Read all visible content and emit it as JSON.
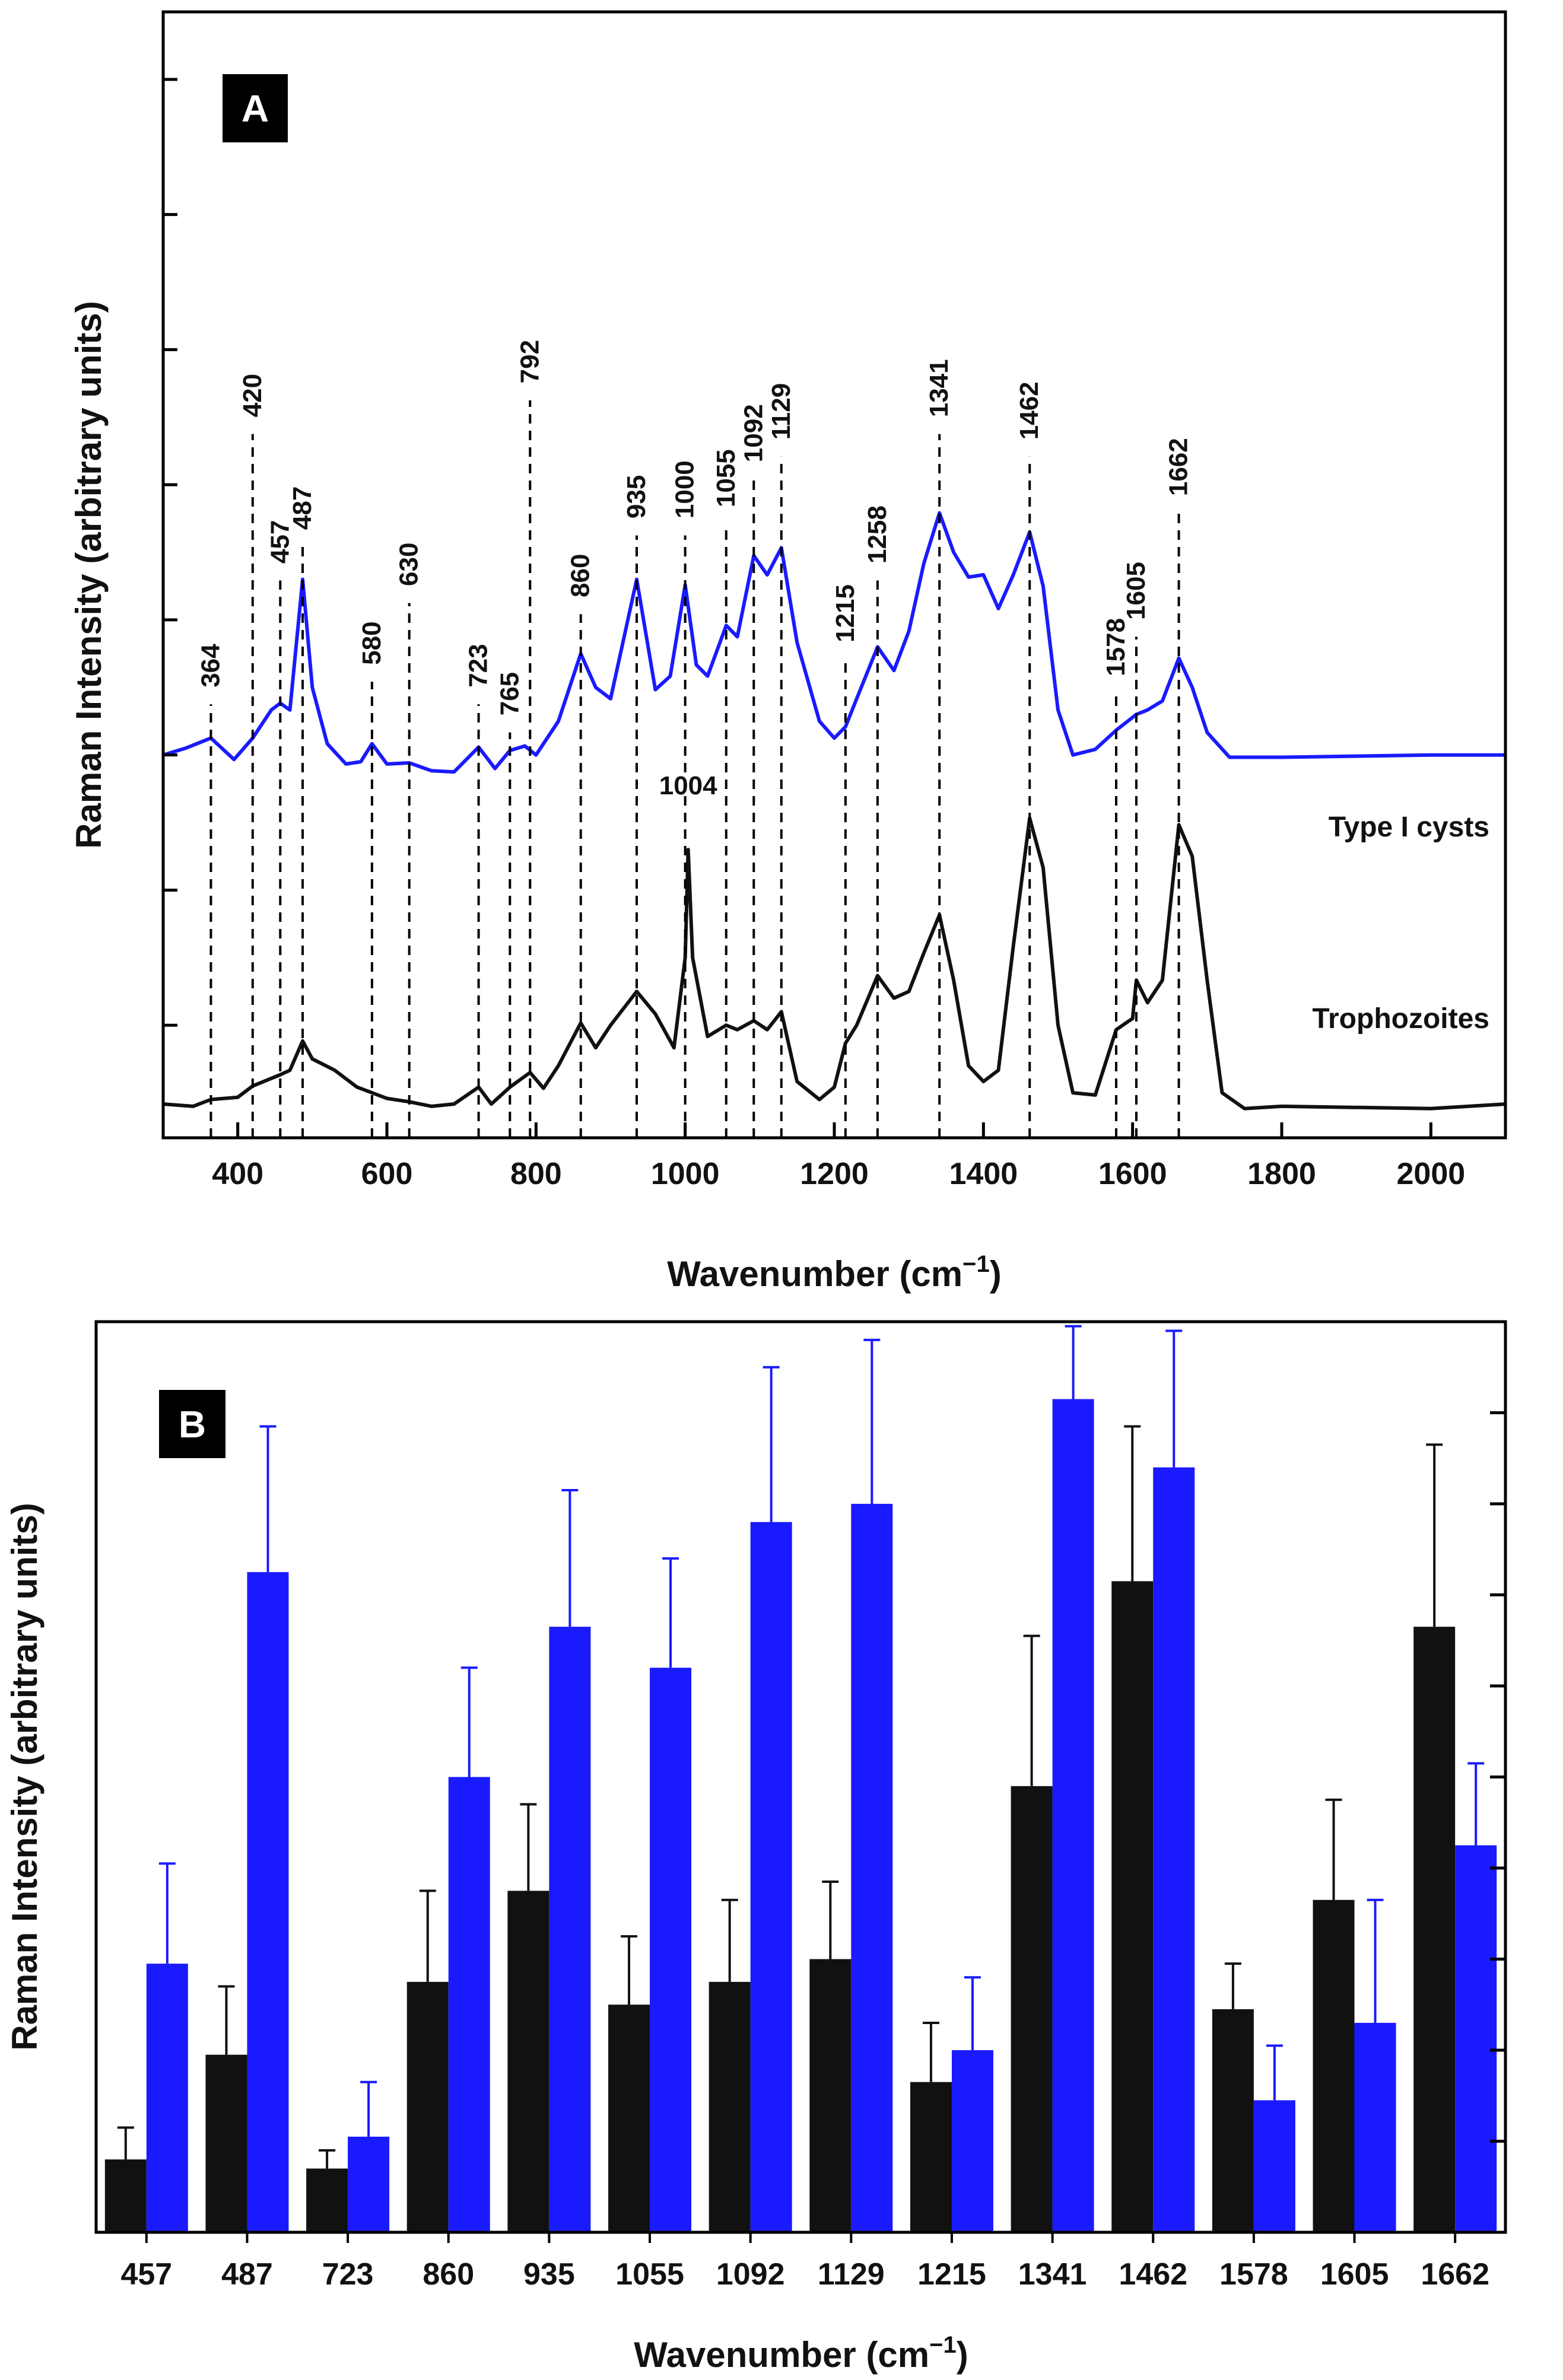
{
  "colors": {
    "cysts": "#1a1aff",
    "tropho": "#111111",
    "axis": "#000000"
  },
  "chart_data": [
    {
      "type": "line",
      "panel": "A",
      "xlabel_main": "Wavenumber (cm",
      "xlabel_sup": "−1",
      "xlabel_close": ")",
      "ylabel": "Raman Intensity (arbitrary units)",
      "xlim": [
        300,
        2100
      ],
      "ylim": [
        0,
        100
      ],
      "xticks": [
        400,
        600,
        800,
        1000,
        1200,
        1400,
        1600,
        1800,
        2000
      ],
      "yticks_minor": [
        10,
        22,
        34,
        46,
        58,
        70,
        82,
        94
      ],
      "series": [
        {
          "name": "Type I cysts",
          "color": "#1a1aff",
          "points": [
            [
              300,
              34
            ],
            [
              330,
              34.6
            ],
            [
              364,
              35.5
            ],
            [
              395,
              33.6
            ],
            [
              420,
              35.5
            ],
            [
              445,
              38
            ],
            [
              457,
              38.6
            ],
            [
              470,
              38
            ],
            [
              487,
              49.6
            ],
            [
              500,
              40
            ],
            [
              520,
              35
            ],
            [
              545,
              33.2
            ],
            [
              565,
              33.4
            ],
            [
              580,
              35
            ],
            [
              600,
              33.2
            ],
            [
              630,
              33.3
            ],
            [
              660,
              32.6
            ],
            [
              690,
              32.5
            ],
            [
              723,
              34.7
            ],
            [
              745,
              32.8
            ],
            [
              765,
              34.4
            ],
            [
              785,
              34.8
            ],
            [
              800,
              34
            ],
            [
              830,
              37
            ],
            [
              860,
              43
            ],
            [
              880,
              40
            ],
            [
              900,
              39
            ],
            [
              935,
              49.6
            ],
            [
              960,
              39.8
            ],
            [
              980,
              41
            ],
            [
              1000,
              49.1
            ],
            [
              1015,
              42
            ],
            [
              1030,
              41
            ],
            [
              1055,
              45.5
            ],
            [
              1070,
              44.5
            ],
            [
              1092,
              51.7
            ],
            [
              1110,
              50
            ],
            [
              1129,
              52.4
            ],
            [
              1150,
              44
            ],
            [
              1180,
              37
            ],
            [
              1200,
              35.5
            ],
            [
              1215,
              36.5
            ],
            [
              1230,
              39
            ],
            [
              1258,
              43.6
            ],
            [
              1280,
              41.5
            ],
            [
              1300,
              45
            ],
            [
              1320,
              51
            ],
            [
              1341,
              55.5
            ],
            [
              1360,
              52
            ],
            [
              1380,
              49.8
            ],
            [
              1400,
              50
            ],
            [
              1420,
              47
            ],
            [
              1440,
              50
            ],
            [
              1462,
              53.8
            ],
            [
              1480,
              49
            ],
            [
              1500,
              38
            ],
            [
              1520,
              34
            ],
            [
              1550,
              34.5
            ],
            [
              1578,
              36.2
            ],
            [
              1605,
              37.6
            ],
            [
              1620,
              38
            ],
            [
              1640,
              38.8
            ],
            [
              1662,
              42.6
            ],
            [
              1680,
              40
            ],
            [
              1700,
              36
            ],
            [
              1730,
              33.8
            ],
            [
              1800,
              33.8
            ],
            [
              2000,
              34
            ],
            [
              2100,
              34
            ]
          ]
        },
        {
          "name": "Trophozoites",
          "color": "#111111",
          "points": [
            [
              300,
              3
            ],
            [
              340,
              2.8
            ],
            [
              364,
              3.4
            ],
            [
              400,
              3.6
            ],
            [
              420,
              4.6
            ],
            [
              457,
              5.6
            ],
            [
              470,
              6
            ],
            [
              487,
              8.6
            ],
            [
              500,
              7
            ],
            [
              530,
              6
            ],
            [
              560,
              4.5
            ],
            [
              580,
              4
            ],
            [
              600,
              3.5
            ],
            [
              630,
              3.2
            ],
            [
              660,
              2.8
            ],
            [
              690,
              3
            ],
            [
              723,
              4.5
            ],
            [
              740,
              3
            ],
            [
              765,
              4.5
            ],
            [
              792,
              5.8
            ],
            [
              810,
              4.4
            ],
            [
              830,
              6.4
            ],
            [
              860,
              10.2
            ],
            [
              880,
              8
            ],
            [
              900,
              10
            ],
            [
              935,
              13
            ],
            [
              960,
              11
            ],
            [
              985,
              8
            ],
            [
              1000,
              16
            ],
            [
              1004,
              25.6
            ],
            [
              1010,
              16
            ],
            [
              1030,
              9
            ],
            [
              1055,
              10
            ],
            [
              1070,
              9.6
            ],
            [
              1092,
              10.4
            ],
            [
              1110,
              9.6
            ],
            [
              1129,
              11.2
            ],
            [
              1150,
              5
            ],
            [
              1180,
              3.4
            ],
            [
              1200,
              4.5
            ],
            [
              1215,
              8.4
            ],
            [
              1230,
              10
            ],
            [
              1258,
              14.4
            ],
            [
              1280,
              12.4
            ],
            [
              1300,
              13
            ],
            [
              1320,
              16.4
            ],
            [
              1341,
              19.8
            ],
            [
              1360,
              14
            ],
            [
              1380,
              6.4
            ],
            [
              1400,
              5
            ],
            [
              1420,
              6
            ],
            [
              1440,
              17
            ],
            [
              1462,
              28.4
            ],
            [
              1480,
              24
            ],
            [
              1500,
              10
            ],
            [
              1520,
              4
            ],
            [
              1550,
              3.8
            ],
            [
              1578,
              9.6
            ],
            [
              1600,
              10.6
            ],
            [
              1605,
              14
            ],
            [
              1620,
              12
            ],
            [
              1640,
              14
            ],
            [
              1662,
              27.8
            ],
            [
              1680,
              25
            ],
            [
              1700,
              14
            ],
            [
              1720,
              4
            ],
            [
              1750,
              2.6
            ],
            [
              1800,
              2.8
            ],
            [
              2000,
              2.6
            ],
            [
              2100,
              3
            ]
          ]
        }
      ],
      "series_labels": [
        "Type I cysts",
        "Trophozoites"
      ],
      "peaks_top": [
        {
          "x": 364,
          "label": "364",
          "ytext": 40,
          "rot": true
        },
        {
          "x": 420,
          "label": "420",
          "ytext": 64,
          "rot": true
        },
        {
          "x": 457,
          "label": "457",
          "ytext": 51,
          "rot": true
        },
        {
          "x": 487,
          "label": "487",
          "ytext": 54,
          "rot": true
        },
        {
          "x": 580,
          "label": "580",
          "ytext": 42,
          "rot": true
        },
        {
          "x": 630,
          "label": "630",
          "ytext": 49,
          "rot": true
        },
        {
          "x": 723,
          "label": "723",
          "ytext": 40,
          "rot": true
        },
        {
          "x": 765,
          "label": "765",
          "ytext": 37.5,
          "rot": true
        },
        {
          "x": 792,
          "label": "792",
          "ytext": 67,
          "rot": true
        },
        {
          "x": 860,
          "label": "860",
          "ytext": 48,
          "rot": true
        },
        {
          "x": 935,
          "label": "935",
          "ytext": 55,
          "rot": true
        },
        {
          "x": 1000,
          "label": "1000",
          "ytext": 55,
          "rot": true
        },
        {
          "x": 1055,
          "label": "1055",
          "ytext": 56,
          "rot": true
        },
        {
          "x": 1092,
          "label": "1092",
          "ytext": 60,
          "rot": true
        },
        {
          "x": 1129,
          "label": "1129",
          "ytext": 62,
          "rot": true
        },
        {
          "x": 1215,
          "label": "1215",
          "ytext": 44,
          "rot": true
        },
        {
          "x": 1258,
          "label": "1258",
          "ytext": 51,
          "rot": true
        },
        {
          "x": 1341,
          "label": "1341",
          "ytext": 64,
          "rot": true
        },
        {
          "x": 1462,
          "label": "1462",
          "ytext": 62,
          "rot": true
        },
        {
          "x": 1578,
          "label": "1578",
          "ytext": 41,
          "rot": true
        },
        {
          "x": 1605,
          "label": "1605",
          "ytext": 46,
          "rot": true
        },
        {
          "x": 1662,
          "label": "1662",
          "ytext": 57,
          "rot": true
        }
      ],
      "peak_1004": {
        "x": 1004,
        "label": "1004"
      }
    },
    {
      "type": "bar",
      "panel": "B",
      "xlabel_main": "Wavenumber (cm",
      "xlabel_sup": "−1",
      "xlabel_close": ")",
      "ylabel": "Raman Intensity (arbitrary units)",
      "ylim": [
        0,
        100
      ],
      "yticks_minor": [
        10,
        20,
        30,
        40,
        50,
        60,
        70,
        80,
        90
      ],
      "categories": [
        "457",
        "487",
        "723",
        "860",
        "935",
        "1055",
        "1092",
        "1129",
        "1215",
        "1341",
        "1462",
        "1578",
        "1605",
        "1662"
      ],
      "series": [
        {
          "name": "Trophozoites",
          "color": "#111111",
          "values": [
            8,
            19.5,
            7,
            27.5,
            37.5,
            25,
            27.5,
            30,
            16.5,
            49,
            71.5,
            24.5,
            36.5,
            66.5
          ],
          "errors": [
            3.5,
            7.5,
            2,
            10,
            9.5,
            7.5,
            9,
            8.5,
            6.5,
            16.5,
            17,
            5,
            11,
            20
          ]
        },
        {
          "name": "Type I cysts",
          "color": "#1a1aff",
          "values": [
            29.5,
            72.5,
            10.5,
            50,
            66.5,
            62,
            78,
            80,
            20,
            91.5,
            84,
            14.5,
            23,
            42.5
          ],
          "errors": [
            11,
            16,
            6,
            12,
            15,
            12,
            17,
            18,
            8,
            8,
            15,
            6,
            13.5,
            9
          ]
        }
      ]
    }
  ]
}
